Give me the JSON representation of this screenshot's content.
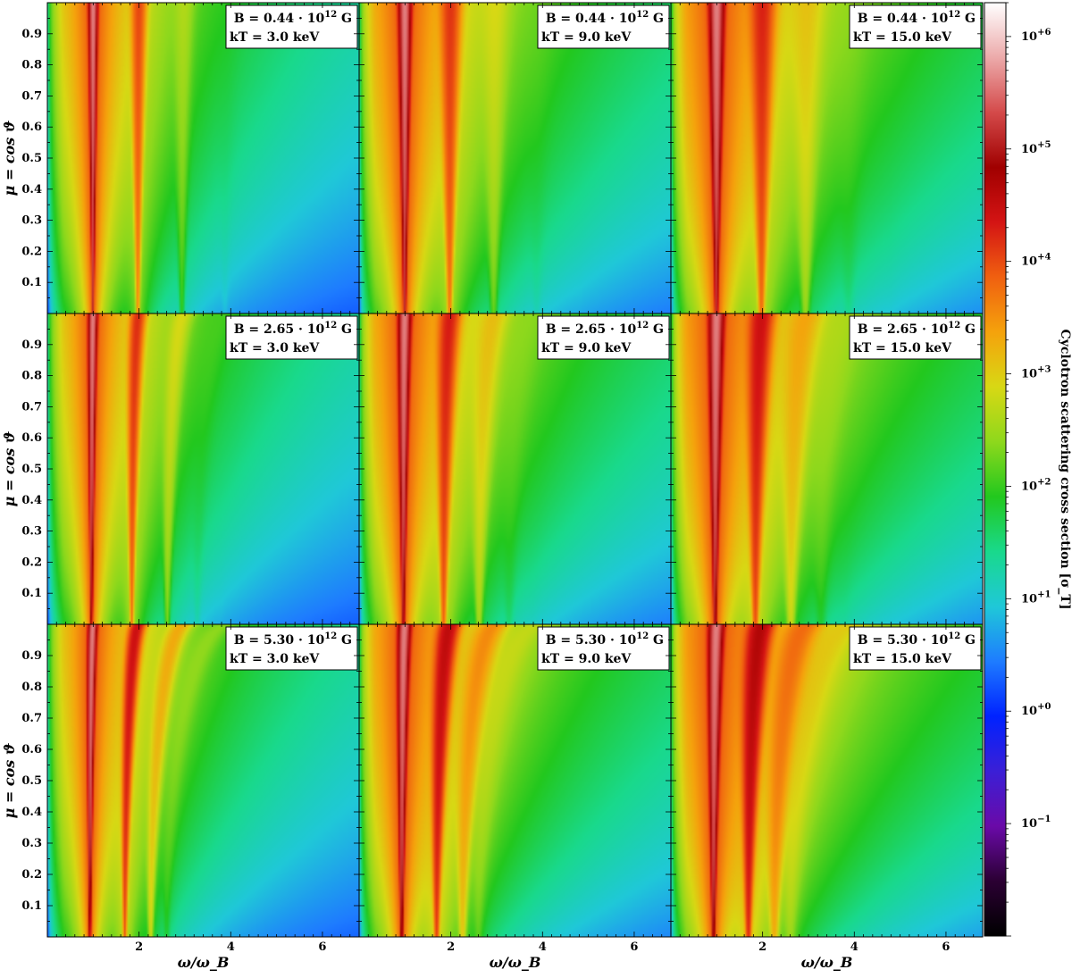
{
  "chart_data": {
    "type": "heatmap",
    "layout": {
      "rows": 3,
      "cols": 3,
      "shared_axes": true
    },
    "x": {
      "label": "ω/ω_B",
      "ticks": [
        2,
        4,
        6
      ],
      "range": [
        0,
        6.8
      ]
    },
    "y": {
      "label": "μ = cos ϑ",
      "ticks": [
        0.1,
        0.2,
        0.3,
        0.4,
        0.5,
        0.6,
        0.7,
        0.8,
        0.9
      ],
      "range": [
        0,
        1
      ]
    },
    "colorbar": {
      "label": "Cyclotron scattering cross section [σ_T]",
      "scale": "log",
      "range": [
        0.01,
        2000000
      ],
      "ticks": [
        {
          "value": 0.1,
          "base": "10",
          "exp": "−1"
        },
        {
          "value": 1,
          "base": "10",
          "exp": "+0"
        },
        {
          "value": 10,
          "base": "10",
          "exp": "+1"
        },
        {
          "value": 100,
          "base": "10",
          "exp": "+2"
        },
        {
          "value": 1000,
          "base": "10",
          "exp": "+3"
        },
        {
          "value": 10000,
          "base": "10",
          "exp": "+4"
        },
        {
          "value": 100000,
          "base": "10",
          "exp": "+5"
        },
        {
          "value": 1000000,
          "base": "10",
          "exp": "+6"
        }
      ],
      "colormap": [
        "#000000",
        "#2b0033",
        "#6a0aa8",
        "#3b1fd6",
        "#0022ff",
        "#1e7cff",
        "#1fc8d8",
        "#19d98c",
        "#22c81e",
        "#8ed81c",
        "#d8d814",
        "#f5a20c",
        "#f06010",
        "#d41414",
        "#a00000",
        "#d44a4a",
        "#ecaaaa",
        "#ffffff"
      ]
    },
    "panels": [
      {
        "row": 0,
        "col": 0,
        "B_label": "B = 0.44 · 10",
        "B_exp": "12",
        "B_unit": " G",
        "kT_label": "kT = 3.0 keV",
        "B": 0.44,
        "kT": 3.0
      },
      {
        "row": 0,
        "col": 1,
        "B_label": "B = 0.44 · 10",
        "B_exp": "12",
        "B_unit": " G",
        "kT_label": "kT = 9.0 keV",
        "B": 0.44,
        "kT": 9.0
      },
      {
        "row": 0,
        "col": 2,
        "B_label": "B = 0.44 · 10",
        "B_exp": "12",
        "B_unit": " G",
        "kT_label": "kT = 15.0 keV",
        "B": 0.44,
        "kT": 15.0
      },
      {
        "row": 1,
        "col": 0,
        "B_label": "B = 2.65 · 10",
        "B_exp": "12",
        "B_unit": " G",
        "kT_label": "kT = 3.0 keV",
        "B": 2.65,
        "kT": 3.0
      },
      {
        "row": 1,
        "col": 1,
        "B_label": "B = 2.65 · 10",
        "B_exp": "12",
        "B_unit": " G",
        "kT_label": "kT = 9.0 keV",
        "B": 2.65,
        "kT": 9.0
      },
      {
        "row": 1,
        "col": 2,
        "B_label": "B = 2.65 · 10",
        "B_exp": "12",
        "B_unit": " G",
        "kT_label": "kT = 15.0 keV",
        "B": 2.65,
        "kT": 15.0
      },
      {
        "row": 2,
        "col": 0,
        "B_label": "B = 5.30 · 10",
        "B_exp": "12",
        "B_unit": " G",
        "kT_label": "kT = 3.0 keV",
        "B": 5.3,
        "kT": 3.0
      },
      {
        "row": 2,
        "col": 1,
        "B_label": "B = 5.30 · 10",
        "B_exp": "12",
        "B_unit": " G",
        "kT_label": "kT = 9.0 keV",
        "B": 5.3,
        "kT": 9.0
      },
      {
        "row": 2,
        "col": 2,
        "B_label": "B = 5.30 · 10",
        "B_exp": "12",
        "B_unit": " G",
        "kT_label": "kT = 15.0 keV",
        "B": 5.3,
        "kT": 15.0
      }
    ]
  }
}
